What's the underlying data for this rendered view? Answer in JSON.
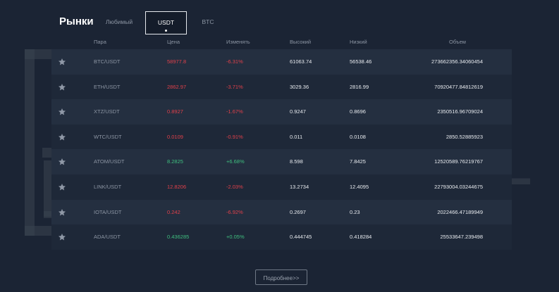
{
  "header": {
    "title": "Рынки",
    "tabs": [
      {
        "label": "Любимый",
        "active": false
      },
      {
        "label": "USDT",
        "active": true
      },
      {
        "label": "BTC",
        "active": false
      }
    ]
  },
  "table": {
    "columns": [
      "Пара",
      "Цена",
      "Изменять",
      "Высокий",
      "Низкий",
      "Объем"
    ],
    "rows": [
      {
        "pair": "BTC/USDT",
        "price": "58977.8",
        "change": "-6.31%",
        "high": "61063.74",
        "low": "56538.46",
        "volume": "273662356.34060454",
        "trend": "down"
      },
      {
        "pair": "ETH/USDT",
        "price": "2862.97",
        "change": "-3.71%",
        "high": "3029.36",
        "low": "2816.99",
        "volume": "70920477.84812619",
        "trend": "down"
      },
      {
        "pair": "XTZ/USDT",
        "price": "0.8927",
        "change": "-1.67%",
        "high": "0.9247",
        "low": "0.8696",
        "volume": "2350516.96709024",
        "trend": "down"
      },
      {
        "pair": "WTC/USDT",
        "price": "0.0109",
        "change": "-0.91%",
        "high": "0.011",
        "low": "0.0108",
        "volume": "2850.52885923",
        "trend": "down"
      },
      {
        "pair": "ATOM/USDT",
        "price": "8.2825",
        "change": "+6.68%",
        "high": "8.598",
        "low": "7.8425",
        "volume": "12520589.76219767",
        "trend": "up"
      },
      {
        "pair": "LINK/USDT",
        "price": "12.8206",
        "change": "-2.03%",
        "high": "13.2734",
        "low": "12.4095",
        "volume": "22793004.03244675",
        "trend": "down"
      },
      {
        "pair": "IOTA/USDT",
        "price": "0.242",
        "change": "-6.92%",
        "high": "0.2697",
        "low": "0.23",
        "volume": "2022466.47189949",
        "trend": "down"
      },
      {
        "pair": "ADA/USDT",
        "price": "0.436285",
        "change": "+0.05%",
        "high": "0.444745",
        "low": "0.418284",
        "volume": "25533647.239498",
        "trend": "up"
      }
    ]
  },
  "more_button": {
    "label": "Подробнее>>"
  },
  "watermark": {
    "line1": "BROKER",
    "line2": "TRIBUNAL"
  },
  "icons": {
    "favorite": "star-icon"
  },
  "colors": {
    "up": "#3fbf7f",
    "down": "#e0404a",
    "background": "#1b2434"
  }
}
